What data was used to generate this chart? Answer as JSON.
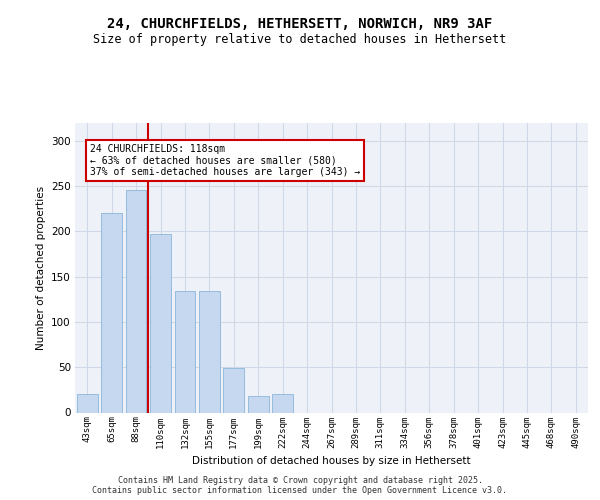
{
  "title_line1": "24, CHURCHFIELDS, HETHERSETT, NORWICH, NR9 3AF",
  "title_line2": "Size of property relative to detached houses in Hethersett",
  "xlabel": "Distribution of detached houses by size in Hethersett",
  "ylabel": "Number of detached properties",
  "categories": [
    "43sqm",
    "65sqm",
    "88sqm",
    "110sqm",
    "132sqm",
    "155sqm",
    "177sqm",
    "199sqm",
    "222sqm",
    "244sqm",
    "267sqm",
    "289sqm",
    "311sqm",
    "334sqm",
    "356sqm",
    "378sqm",
    "401sqm",
    "423sqm",
    "445sqm",
    "468sqm",
    "490sqm"
  ],
  "values": [
    20,
    220,
    245,
    197,
    134,
    134,
    49,
    18,
    20,
    0,
    0,
    0,
    0,
    0,
    0,
    0,
    0,
    0,
    0,
    0,
    0
  ],
  "bar_color": "#c5d8f0",
  "bar_edge_color": "#7aadd4",
  "grid_color": "#d0d8e8",
  "background_color": "#eef2f8",
  "vline_x_index": 3,
  "vline_color": "#cc0000",
  "annotation_text": "24 CHURCHFIELDS: 118sqm\n← 63% of detached houses are smaller (580)\n37% of semi-detached houses are larger (343) →",
  "annotation_box_color": "#ffffff",
  "annotation_box_edge": "#cc0000",
  "footer_text": "Contains HM Land Registry data © Crown copyright and database right 2025.\nContains public sector information licensed under the Open Government Licence v3.0.",
  "ylim": [
    0,
    320
  ],
  "yticks": [
    0,
    50,
    100,
    150,
    200,
    250,
    300
  ]
}
